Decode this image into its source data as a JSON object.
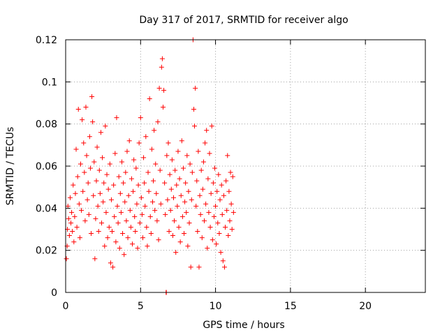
{
  "chart_data": {
    "type": "scatter",
    "title": "Day 317 of 2017, SRMTID for receiver algo",
    "xlabel": "GPS time / hours",
    "ylabel": "SRMTID / TECUs",
    "xlim": [
      0,
      24
    ],
    "ylim": [
      0,
      0.12
    ],
    "xticks": [
      0,
      5,
      10,
      15,
      20
    ],
    "xtick_labels": [
      "0",
      "5",
      "10",
      "15",
      "20"
    ],
    "yticks": [
      0,
      0.02,
      0.04,
      0.06,
      0.08,
      0.1,
      0.12
    ],
    "ytick_labels": [
      "0",
      "0.02",
      "0.04",
      "0.06",
      "0.08",
      "0.1",
      "0.12"
    ],
    "grid": true,
    "marker": "+",
    "color": "#ff0000",
    "series": [
      {
        "name": "SRMTID",
        "points": [
          [
            0.05,
            0.016
          ],
          [
            0.1,
            0.022
          ],
          [
            0.12,
            0.03
          ],
          [
            0.15,
            0.041
          ],
          [
            0.2,
            0.035
          ],
          [
            0.25,
            0.027
          ],
          [
            0.3,
            0.045
          ],
          [
            0.35,
            0.033
          ],
          [
            0.4,
            0.038
          ],
          [
            0.45,
            0.029
          ],
          [
            0.5,
            0.051
          ],
          [
            0.55,
            0.024
          ],
          [
            0.6,
            0.036
          ],
          [
            0.65,
            0.047
          ],
          [
            0.7,
            0.068
          ],
          [
            0.75,
            0.031
          ],
          [
            0.8,
            0.055
          ],
          [
            0.85,
            0.087
          ],
          [
            0.9,
            0.042
          ],
          [
            0.95,
            0.026
          ],
          [
            1.0,
            0.061
          ],
          [
            1.05,
            0.039
          ],
          [
            1.1,
            0.082
          ],
          [
            1.15,
            0.048
          ],
          [
            1.2,
            0.071
          ],
          [
            1.25,
            0.057
          ],
          [
            1.3,
            0.034
          ],
          [
            1.35,
            0.088
          ],
          [
            1.4,
            0.065
          ],
          [
            1.45,
            0.044
          ],
          [
            1.5,
            0.052
          ],
          [
            1.55,
            0.037
          ],
          [
            1.6,
            0.074
          ],
          [
            1.65,
            0.059
          ],
          [
            1.7,
            0.028
          ],
          [
            1.75,
            0.093
          ],
          [
            1.8,
            0.081
          ],
          [
            1.85,
            0.046
          ],
          [
            1.9,
            0.062
          ],
          [
            1.95,
            0.016
          ],
          [
            2.0,
            0.035
          ],
          [
            2.05,
            0.053
          ],
          [
            2.1,
            0.069
          ],
          [
            2.15,
            0.041
          ],
          [
            2.2,
            0.029
          ],
          [
            2.25,
            0.058
          ],
          [
            2.3,
            0.047
          ],
          [
            2.35,
            0.076
          ],
          [
            2.4,
            0.033
          ],
          [
            2.45,
            0.064
          ],
          [
            2.5,
            0.043
          ],
          [
            2.55,
            0.052
          ],
          [
            2.6,
            0.022
          ],
          [
            2.65,
            0.079
          ],
          [
            2.7,
            0.038
          ],
          [
            2.75,
            0.056
          ],
          [
            2.8,
            0.026
          ],
          [
            2.85,
            0.049
          ],
          [
            2.9,
            0.031
          ],
          [
            2.95,
            0.061
          ],
          [
            3.0,
            0.014
          ],
          [
            3.05,
            0.044
          ],
          [
            3.1,
            0.029
          ],
          [
            3.15,
            0.012
          ],
          [
            3.2,
            0.051
          ],
          [
            3.25,
            0.036
          ],
          [
            3.3,
            0.066
          ],
          [
            3.35,
            0.024
          ],
          [
            3.4,
            0.083
          ],
          [
            3.45,
            0.041
          ],
          [
            3.5,
            0.033
          ],
          [
            3.55,
            0.055
          ],
          [
            3.6,
            0.021
          ],
          [
            3.65,
            0.047
          ],
          [
            3.7,
            0.038
          ],
          [
            3.75,
            0.062
          ],
          [
            3.8,
            0.028
          ],
          [
            3.85,
            0.052
          ],
          [
            3.9,
            0.018
          ],
          [
            3.95,
            0.043
          ],
          [
            4.0,
            0.057
          ],
          [
            4.05,
            0.034
          ],
          [
            4.1,
            0.067
          ],
          [
            4.15,
            0.026
          ],
          [
            4.2,
            0.046
          ],
          [
            4.25,
            0.072
          ],
          [
            4.3,
            0.039
          ],
          [
            4.35,
            0.031
          ],
          [
            4.4,
            0.054
          ],
          [
            4.45,
            0.023
          ],
          [
            4.5,
            0.048
          ],
          [
            4.55,
            0.063
          ],
          [
            4.6,
            0.036
          ],
          [
            4.65,
            0.029
          ],
          [
            4.7,
            0.059
          ],
          [
            4.75,
            0.042
          ],
          [
            4.8,
            0.021
          ],
          [
            4.85,
            0.051
          ],
          [
            4.9,
            0.071
          ],
          [
            4.95,
            0.033
          ],
          [
            5.0,
            0.083
          ],
          [
            5.05,
            0.045
          ],
          [
            5.1,
            0.037
          ],
          [
            5.15,
            0.026
          ],
          [
            5.2,
            0.064
          ],
          [
            5.25,
            0.052
          ],
          [
            5.3,
            0.041
          ],
          [
            5.35,
            0.074
          ],
          [
            5.4,
            0.031
          ],
          [
            5.45,
            0.022
          ],
          [
            5.5,
            0.057
          ],
          [
            5.55,
            0.048
          ],
          [
            5.6,
            0.092
          ],
          [
            5.65,
            0.036
          ],
          [
            5.7,
            0.028
          ],
          [
            5.75,
            0.068
          ],
          [
            5.8,
            0.043
          ],
          [
            5.85,
            0.053
          ],
          [
            5.9,
            0.077
          ],
          [
            5.95,
            0.039
          ],
          [
            6.0,
            0.061
          ],
          [
            6.05,
            0.047
          ],
          [
            6.1,
            0.034
          ],
          [
            6.15,
            0.081
          ],
          [
            6.2,
            0.025
          ],
          [
            6.25,
            0.097
          ],
          [
            6.3,
            0.058
          ],
          [
            6.35,
            0.042
          ],
          [
            6.4,
            0.107
          ],
          [
            6.45,
            0.111
          ],
          [
            6.5,
            0.088
          ],
          [
            6.55,
            0.096
          ],
          [
            6.6,
            0.052
          ],
          [
            6.65,
            0.037
          ],
          [
            6.7,
            0.0
          ],
          [
            6.72,
            0.0
          ],
          [
            6.75,
            0.065
          ],
          [
            6.8,
            0.044
          ],
          [
            6.85,
            0.071
          ],
          [
            6.9,
            0.029
          ],
          [
            6.95,
            0.056
          ],
          [
            7.0,
            0.039
          ],
          [
            7.05,
            0.049
          ],
          [
            7.1,
            0.063
          ],
          [
            7.15,
            0.027
          ],
          [
            7.2,
            0.045
          ],
          [
            7.25,
            0.034
          ],
          [
            7.3,
            0.058
          ],
          [
            7.35,
            0.019
          ],
          [
            7.4,
            0.051
          ],
          [
            7.45,
            0.041
          ],
          [
            7.5,
            0.067
          ],
          [
            7.55,
            0.031
          ],
          [
            7.6,
            0.054
          ],
          [
            7.65,
            0.024
          ],
          [
            7.7,
            0.046
          ],
          [
            7.75,
            0.072
          ],
          [
            7.8,
            0.036
          ],
          [
            7.85,
            0.059
          ],
          [
            7.9,
            0.028
          ],
          [
            7.95,
            0.043
          ],
          [
            8.0,
            0.052
          ],
          [
            8.05,
            0.038
          ],
          [
            8.1,
            0.065
          ],
          [
            8.15,
            0.022
          ],
          [
            8.2,
            0.048
          ],
          [
            8.25,
            0.033
          ],
          [
            8.3,
            0.061
          ],
          [
            8.35,
            0.012
          ],
          [
            8.4,
            0.044
          ],
          [
            8.45,
            0.057
          ],
          [
            8.5,
            0.12
          ],
          [
            8.55,
            0.087
          ],
          [
            8.6,
            0.079
          ],
          [
            8.65,
            0.097
          ],
          [
            8.7,
            0.041
          ],
          [
            8.75,
            0.053
          ],
          [
            8.8,
            0.029
          ],
          [
            8.85,
            0.067
          ],
          [
            8.9,
            0.012
          ],
          [
            8.95,
            0.046
          ],
          [
            9.0,
            0.037
          ],
          [
            9.05,
            0.058
          ],
          [
            9.1,
            0.026
          ],
          [
            9.15,
            0.049
          ],
          [
            9.2,
            0.062
          ],
          [
            9.25,
            0.034
          ],
          [
            9.3,
            0.071
          ],
          [
            9.35,
            0.042
          ],
          [
            9.4,
            0.077
          ],
          [
            9.45,
            0.021
          ],
          [
            9.5,
            0.054
          ],
          [
            9.55,
            0.038
          ],
          [
            9.6,
            0.066
          ],
          [
            9.65,
            0.031
          ],
          [
            9.7,
            0.047
          ],
          [
            9.75,
            0.079
          ],
          [
            9.8,
            0.025
          ],
          [
            9.85,
            0.052
          ],
          [
            9.9,
            0.036
          ],
          [
            9.95,
            0.059
          ],
          [
            10.0,
            0.041
          ],
          [
            10.05,
            0.023
          ],
          [
            10.1,
            0.048
          ],
          [
            10.15,
            0.033
          ],
          [
            10.2,
            0.056
          ],
          [
            10.25,
            0.028
          ],
          [
            10.3,
            0.044
          ],
          [
            10.35,
            0.019
          ],
          [
            10.4,
            0.051
          ],
          [
            10.45,
            0.037
          ],
          [
            10.5,
            0.015
          ],
          [
            10.55,
            0.046
          ],
          [
            10.6,
            0.012
          ],
          [
            10.65,
            0.031
          ],
          [
            10.7,
            0.053
          ],
          [
            10.75,
            0.039
          ],
          [
            10.8,
            0.065
          ],
          [
            10.85,
            0.027
          ],
          [
            10.9,
            0.048
          ],
          [
            10.95,
            0.034
          ],
          [
            11.0,
            0.057
          ],
          [
            11.05,
            0.042
          ],
          [
            11.1,
            0.03
          ],
          [
            11.15,
            0.055
          ],
          [
            11.2,
            0.038
          ]
        ]
      }
    ]
  }
}
